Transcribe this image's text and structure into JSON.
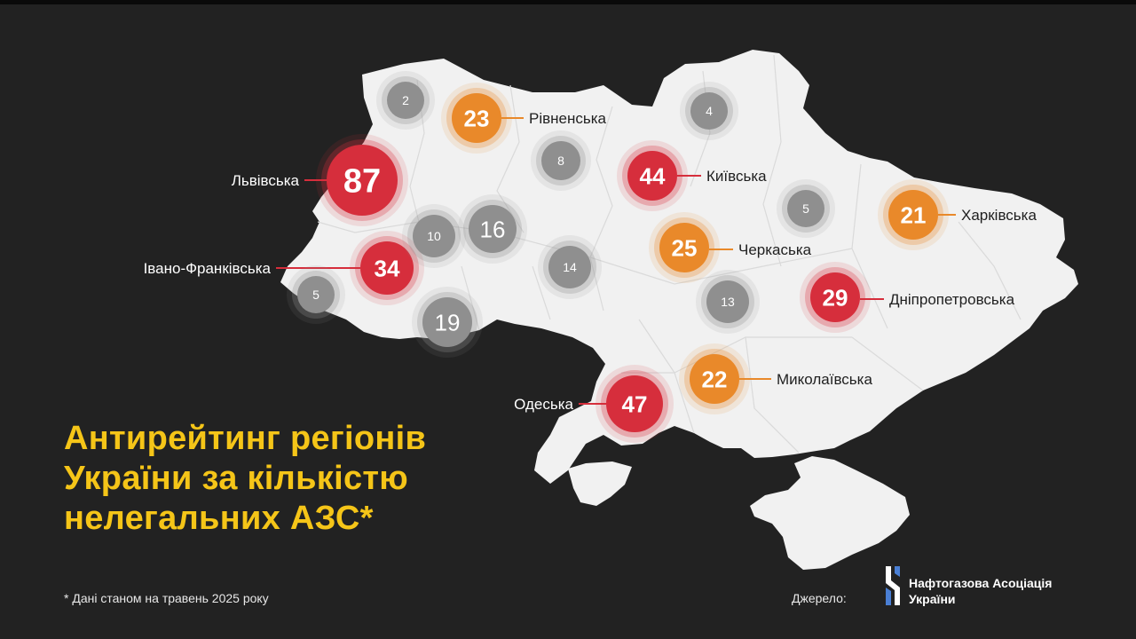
{
  "title_lines": [
    "Антирейтинг регіонів",
    "України за кількістю",
    "нелегальних АЗС*"
  ],
  "footnote": "* Дані станом на травень 2025 року",
  "source": {
    "label": "Джерело:",
    "org_lines": [
      "Нафтогазова Асоціація",
      "України"
    ]
  },
  "colors": {
    "background": "#222222",
    "map_fill": "#f1f1f1",
    "title": "#f5c518",
    "high": "#d62e3c",
    "medium": "#e9892a",
    "low": "#8f8f8f"
  },
  "markers": [
    {
      "value": 87,
      "level": "high",
      "region": "Львівська"
    },
    {
      "value": 34,
      "level": "high",
      "region": "Івано-Франківська"
    },
    {
      "value": 47,
      "level": "high",
      "region": "Одеська"
    },
    {
      "value": 44,
      "level": "high",
      "region": "Київська"
    },
    {
      "value": 29,
      "level": "high",
      "region": "Дніпропетровська"
    },
    {
      "value": 23,
      "level": "medium",
      "region": "Рівненська"
    },
    {
      "value": 25,
      "level": "medium",
      "region": "Черкаська"
    },
    {
      "value": 22,
      "level": "medium",
      "region": "Миколаївська"
    },
    {
      "value": 21,
      "level": "medium",
      "region": "Харківська"
    },
    {
      "value": 2,
      "level": "low"
    },
    {
      "value": 4,
      "level": "low"
    },
    {
      "value": 8,
      "level": "low"
    },
    {
      "value": 10,
      "level": "low"
    },
    {
      "value": 16,
      "level": "low"
    },
    {
      "value": 5,
      "level": "low"
    },
    {
      "value": 14,
      "level": "low"
    },
    {
      "value": 13,
      "level": "low"
    },
    {
      "value": 19,
      "level": "low"
    },
    {
      "value": 5,
      "level": "low"
    }
  ]
}
